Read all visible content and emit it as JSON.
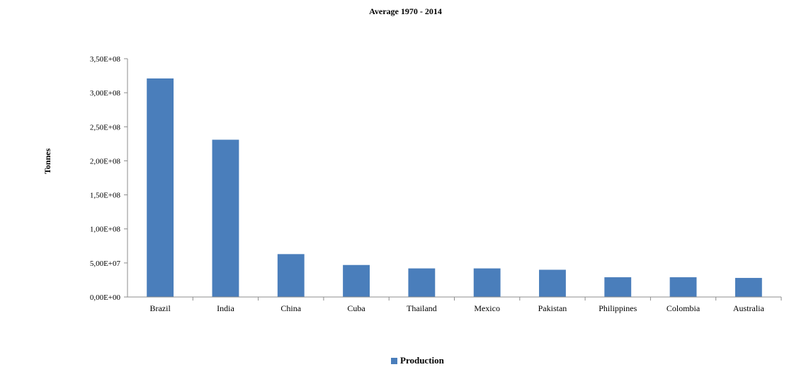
{
  "chart_data": {
    "type": "bar",
    "title": "Average 1970 - 2014",
    "ylabel": "Tonnes",
    "xlabel": "",
    "categories": [
      "Brazil",
      "India",
      "China",
      "Cuba",
      "Thailand",
      "Mexico",
      "Pakistan",
      "Philippines",
      "Colombia",
      "Australia"
    ],
    "series": [
      {
        "name": "Production",
        "color": "#4a7ebb",
        "values": [
          321000000,
          231000000,
          63000000,
          47000000,
          42000000,
          42000000,
          40000000,
          29000000,
          29000000,
          28000000
        ]
      }
    ],
    "ylim": [
      0,
      350000000
    ],
    "y_ticks": [
      0,
      50000000,
      100000000,
      150000000,
      200000000,
      250000000,
      300000000,
      350000000
    ],
    "y_tick_labels": [
      "0,00E+00",
      "5,00E+07",
      "1,00E+08",
      "1,50E+08",
      "2,00E+08",
      "2,50E+08",
      "3,00E+08",
      "3,50E+08"
    ],
    "grid": false,
    "legend_position": "bottom"
  }
}
